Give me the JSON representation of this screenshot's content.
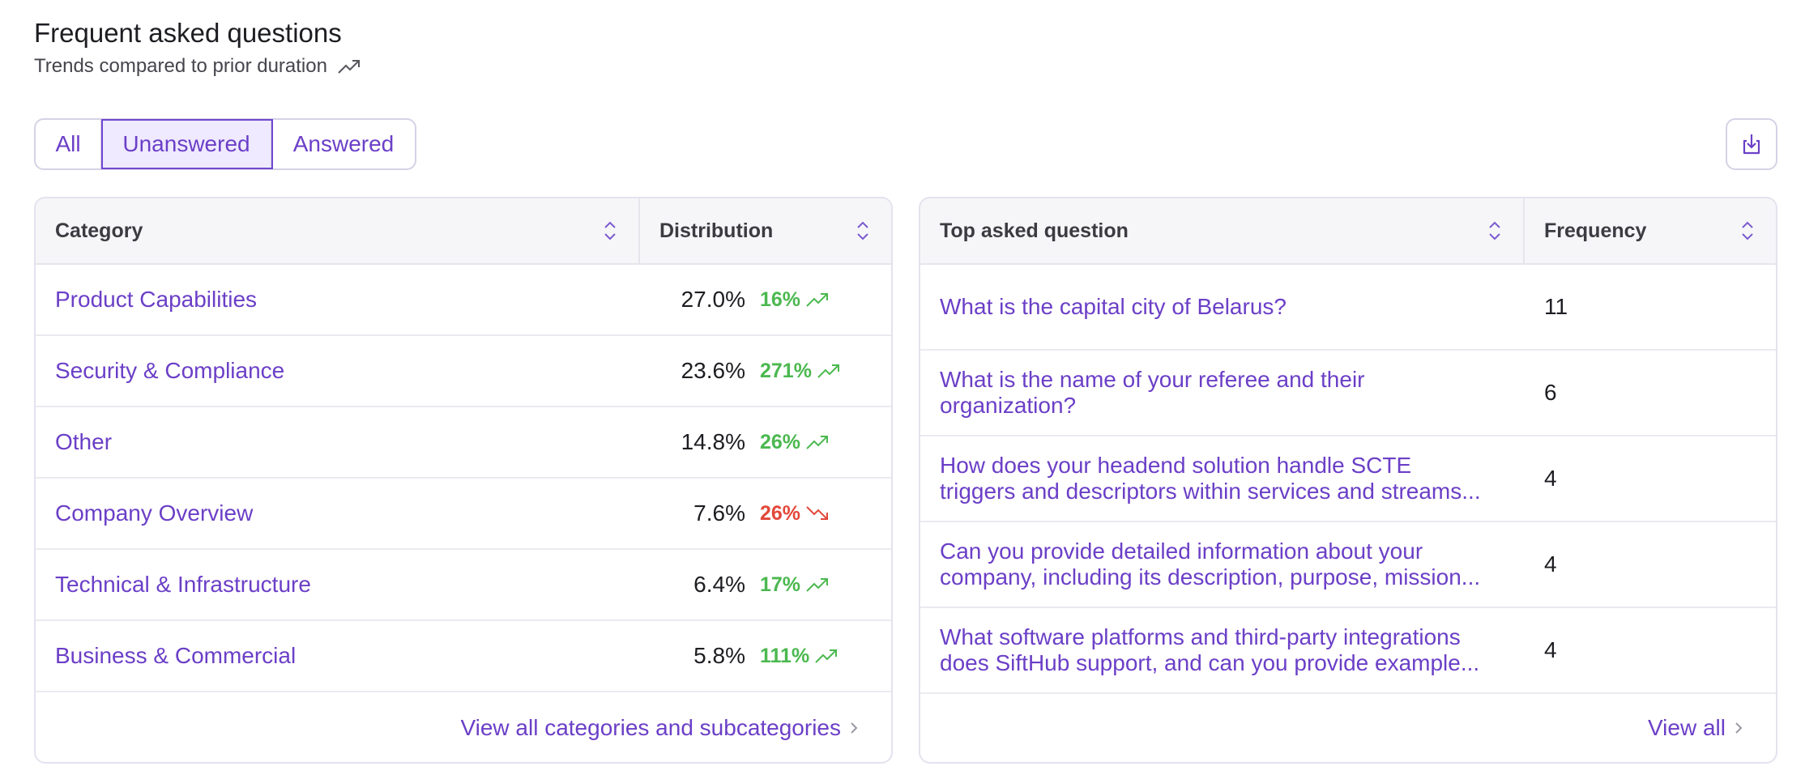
{
  "header": {
    "title": "Frequent asked questions",
    "subtitle": "Trends compared to prior duration",
    "subtitle_icon": "trend-up-icon"
  },
  "filters": {
    "tabs": [
      {
        "label": "All",
        "active": false
      },
      {
        "label": "Unanswered",
        "active": true
      },
      {
        "label": "Answered",
        "active": false
      }
    ]
  },
  "download": {
    "icon": "download-icon"
  },
  "categories_table": {
    "col_category": "Category",
    "col_distribution": "Distribution",
    "rows": [
      {
        "name": "Product Capabilities",
        "pct": "27.0%",
        "trend": "16%",
        "direction": "up"
      },
      {
        "name": "Security & Compliance",
        "pct": "23.6%",
        "trend": "271%",
        "direction": "up"
      },
      {
        "name": "Other",
        "pct": "14.8%",
        "trend": "26%",
        "direction": "up"
      },
      {
        "name": "Company Overview",
        "pct": "7.6%",
        "trend": "26%",
        "direction": "down"
      },
      {
        "name": "Technical & Infrastructure",
        "pct": "6.4%",
        "trend": "17%",
        "direction": "up"
      },
      {
        "name": "Business & Commercial",
        "pct": "5.8%",
        "trend": "111%",
        "direction": "up"
      }
    ],
    "footer_link": "View all categories and subcategories"
  },
  "questions_table": {
    "col_question": "Top asked question",
    "col_frequency": "Frequency",
    "rows": [
      {
        "line1": "What is the capital city of Belarus?",
        "line2": "",
        "freq": "11"
      },
      {
        "line1": "What is the name of your referee and their",
        "line2": "organization?",
        "freq": "6"
      },
      {
        "line1": "How does your headend solution handle SCTE",
        "line2": "triggers and descriptors within services and streams...",
        "freq": "4"
      },
      {
        "line1": "Can you provide detailed information about your",
        "line2": "company, including its description, purpose, mission...",
        "freq": "4"
      },
      {
        "line1": "What software platforms and third-party integrations",
        "line2": "does SiftHub support, and can you provide example...",
        "freq": "4"
      }
    ],
    "footer_link": "View all"
  },
  "colors": {
    "accent": "#6b3fc7",
    "trend_up": "#4bb84f",
    "trend_down": "#e2473a"
  }
}
